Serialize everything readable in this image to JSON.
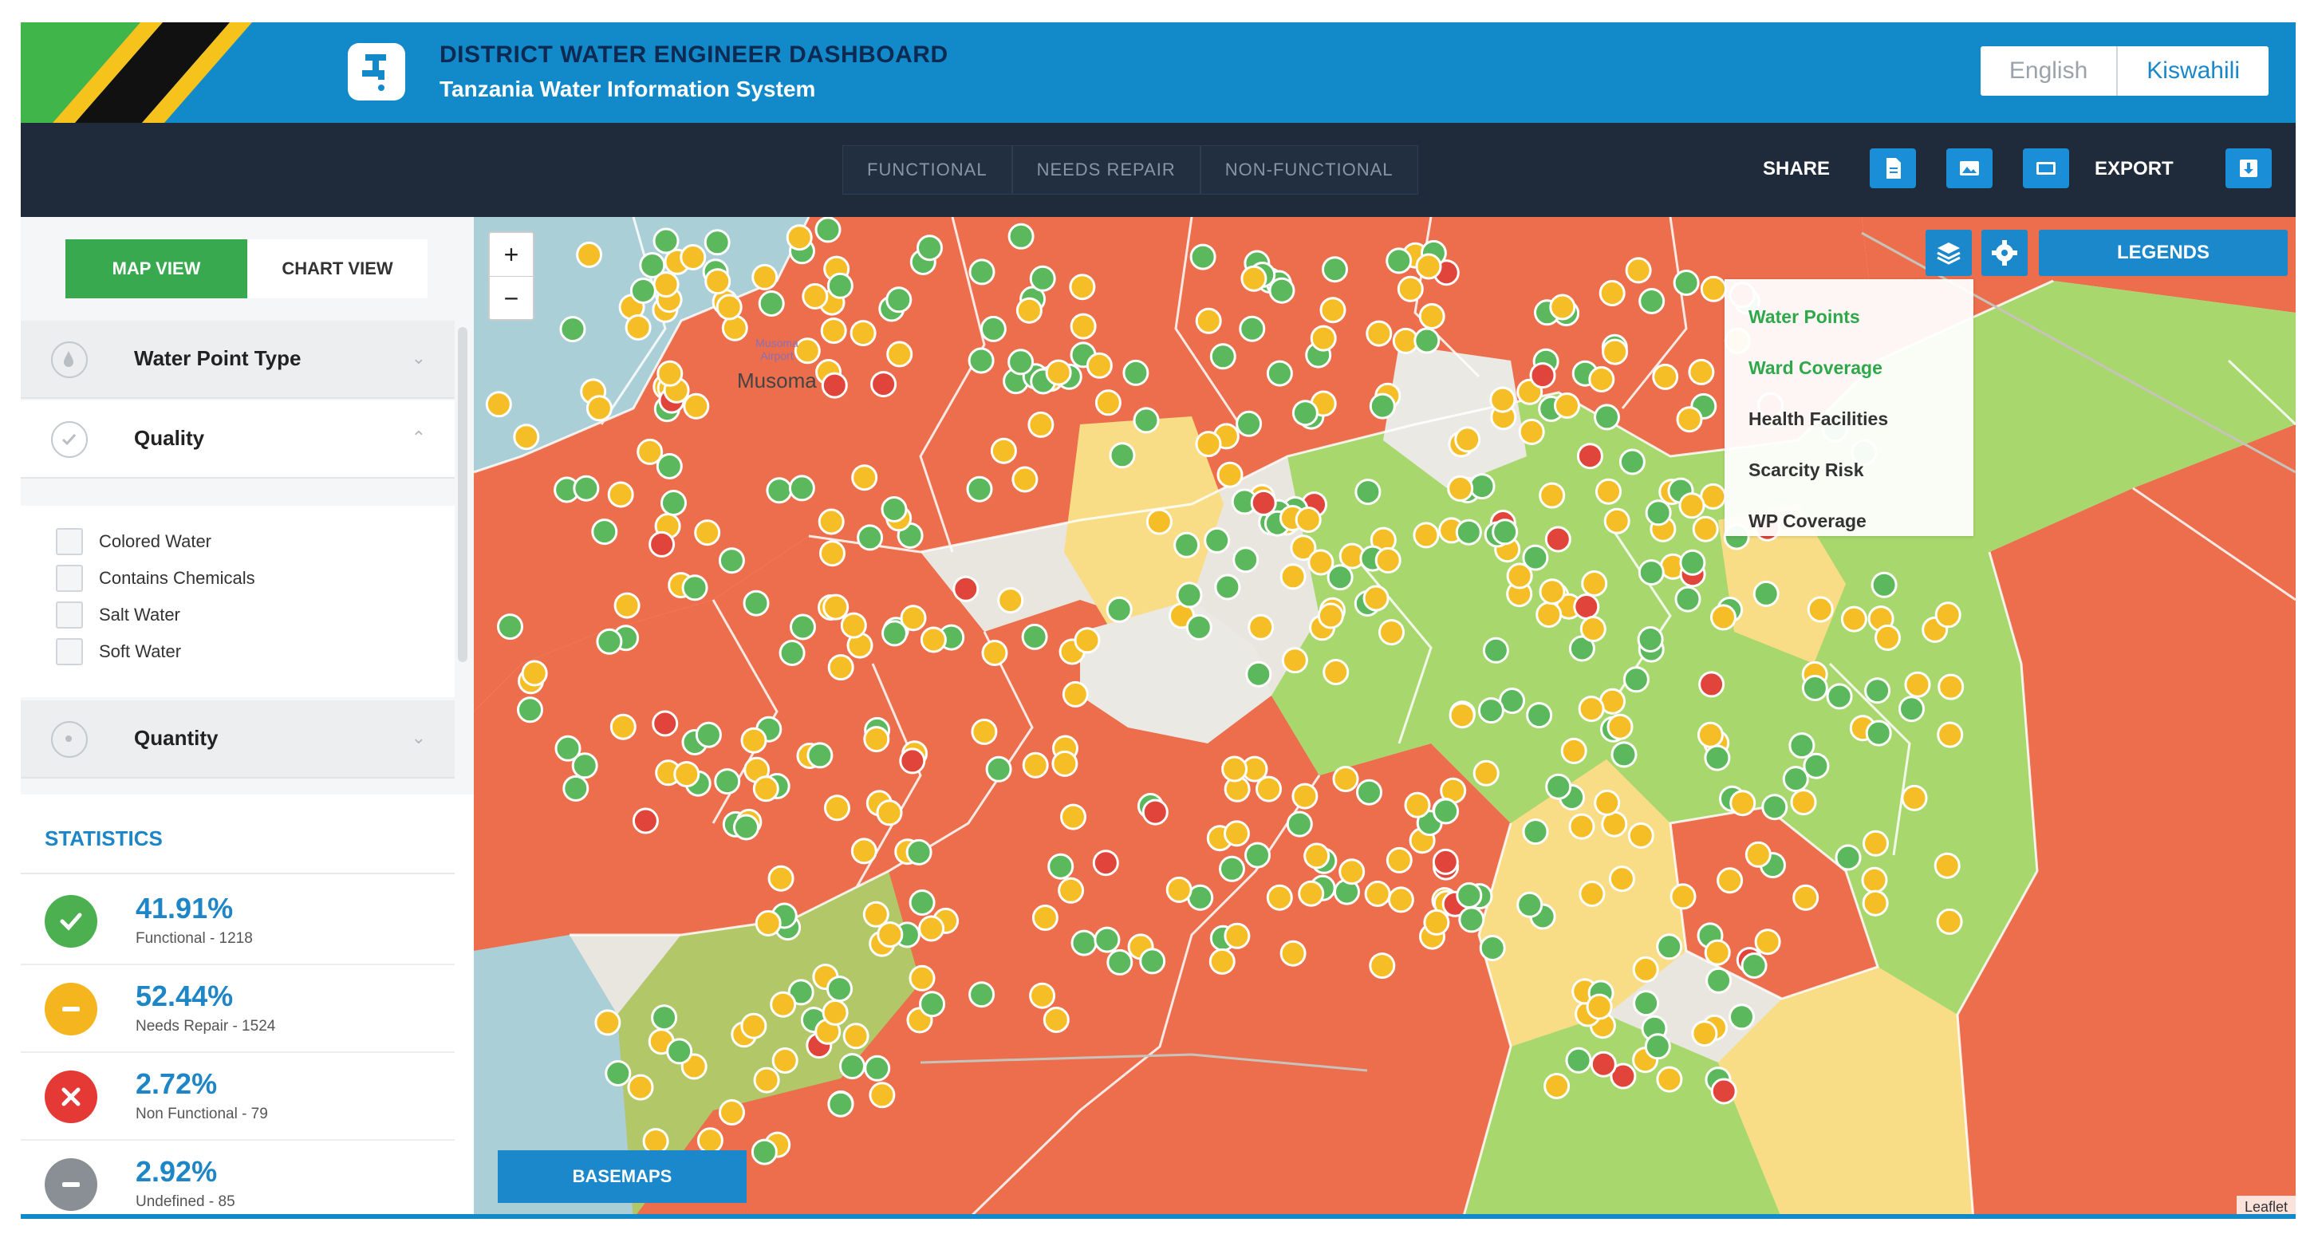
{
  "header": {
    "title": "DISTRICT WATER ENGINEER DASHBOARD",
    "subtitle": "Tanzania Water Information System",
    "languages": {
      "english": "English",
      "kiswahili": "Kiswahili"
    }
  },
  "navbar": {
    "status_tabs": [
      "FUNCTIONAL",
      "NEEDS REPAIR",
      "NON-FUNCTIONAL"
    ],
    "share_label": "SHARE",
    "export_label": "EXPORT"
  },
  "sidebar": {
    "view_toggle": {
      "map_view": "MAP VIEW",
      "chart_view": "CHART VIEW"
    },
    "filters": {
      "water_point_type": "Water Point Type",
      "quality": "Quality",
      "quality_options": [
        "Colored Water",
        "Contains Chemicals",
        "Salt Water",
        "Soft Water"
      ],
      "quantity": "Quantity"
    },
    "statistics": {
      "title": "STATISTICS",
      "items": [
        {
          "pct": "41.91%",
          "label": "Functional - 1218",
          "color": "#4caf50"
        },
        {
          "pct": "52.44%",
          "label": "Needs Repair - 1524",
          "color": "#f5b51f"
        },
        {
          "pct": "2.72%",
          "label": "Non Functional - 79",
          "color": "#e53935"
        },
        {
          "pct": "2.92%",
          "label": "Undefined - 85",
          "color": "#8a8f96"
        }
      ]
    }
  },
  "map": {
    "zoom_in": "+",
    "zoom_out": "−",
    "place_label": "Musoma",
    "airport_label": "Musoma Airport",
    "legends_label": "LEGENDS",
    "layers_menu": [
      "Water Points",
      "Ward Coverage",
      "Health Facilities",
      "Scarcity Risk",
      "WP Coverage"
    ],
    "basemaps_label": "BASEMAPS",
    "attribution": "Leaflet",
    "colors": {
      "functional": "#5cb85c",
      "needs_repair": "#f6be26",
      "non_functional": "#e0443a",
      "ward_red": "#ec6e4c",
      "ward_green": "#a8d86d",
      "ward_yellow": "#f9dd86"
    }
  }
}
